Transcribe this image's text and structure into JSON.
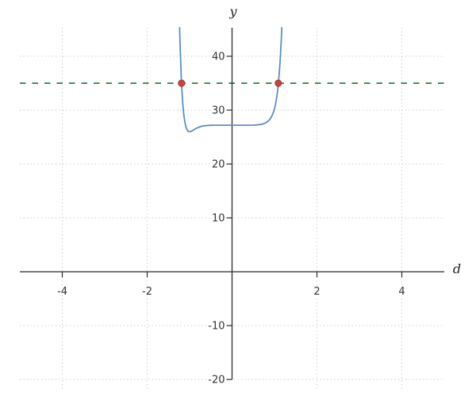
{
  "chart_data": {
    "type": "line",
    "title": "",
    "xlabel": "d",
    "ylabel": "y",
    "xlim": [
      -5,
      5
    ],
    "ylim": [
      -21.6,
      45.3
    ],
    "xticks": [
      -4,
      -2,
      2,
      4
    ],
    "yticks": [
      -20,
      -10,
      10,
      20,
      30,
      40
    ],
    "grid": "dotted",
    "legend": "none",
    "colors": {
      "curve": "#5b8ec4",
      "hline": "#2f8b57",
      "points": "#c2443c",
      "points_edge": "#a03a33",
      "axis": "#2b2b2b",
      "grid": "#cacaca",
      "tick_label": "#333333"
    },
    "series": [
      {
        "name": "function-curve",
        "kind": "line",
        "color_key": "curve",
        "points": [
          [
            -1.236,
            45.3
          ],
          [
            -1.23,
            43.7
          ],
          [
            -1.22,
            41.1
          ],
          [
            -1.21,
            38.8
          ],
          [
            -1.2,
            36.8
          ],
          [
            -1.19,
            35.0
          ],
          [
            -1.18,
            33.6
          ],
          [
            -1.16,
            31.2
          ],
          [
            -1.14,
            29.4
          ],
          [
            -1.12,
            28.2
          ],
          [
            -1.1,
            27.3
          ],
          [
            -1.08,
            26.7
          ],
          [
            -1.06,
            26.4
          ],
          [
            -1.04,
            26.1
          ],
          [
            -1.02,
            26.03
          ],
          [
            -1.0,
            26.0
          ],
          [
            -0.98,
            26.02
          ],
          [
            -0.96,
            26.08
          ],
          [
            -0.94,
            26.16
          ],
          [
            -0.92,
            26.26
          ],
          [
            -0.9,
            26.35
          ],
          [
            -0.85,
            26.59
          ],
          [
            -0.8,
            26.78
          ],
          [
            -0.75,
            26.93
          ],
          [
            -0.7,
            27.03
          ],
          [
            -0.65,
            27.1
          ],
          [
            -0.6,
            27.14
          ],
          [
            -0.5,
            27.18
          ],
          [
            -0.4,
            27.2
          ],
          [
            -0.2,
            27.2
          ],
          [
            0.0,
            27.2
          ],
          [
            0.2,
            27.2
          ],
          [
            0.4,
            27.2
          ],
          [
            0.5,
            27.22
          ],
          [
            0.6,
            27.26
          ],
          [
            0.7,
            27.38
          ],
          [
            0.75,
            27.49
          ],
          [
            0.8,
            27.67
          ],
          [
            0.85,
            27.95
          ],
          [
            0.9,
            28.39
          ],
          [
            0.94,
            28.93
          ],
          [
            0.98,
            29.72
          ],
          [
            1.0,
            30.26
          ],
          [
            1.02,
            30.93
          ],
          [
            1.04,
            31.74
          ],
          [
            1.06,
            32.76
          ],
          [
            1.08,
            34.04
          ],
          [
            1.1,
            35.62
          ],
          [
            1.12,
            37.61
          ],
          [
            1.14,
            40.1
          ],
          [
            1.16,
            43.2
          ],
          [
            1.172,
            45.3
          ]
        ]
      },
      {
        "name": "horizontal-dashed-line",
        "kind": "hline",
        "color_key": "hline",
        "y": 35
      },
      {
        "name": "intersection-points",
        "kind": "scatter",
        "color_key": "points",
        "points": [
          [
            -1.19,
            35
          ],
          [
            1.09,
            35
          ]
        ]
      }
    ]
  }
}
